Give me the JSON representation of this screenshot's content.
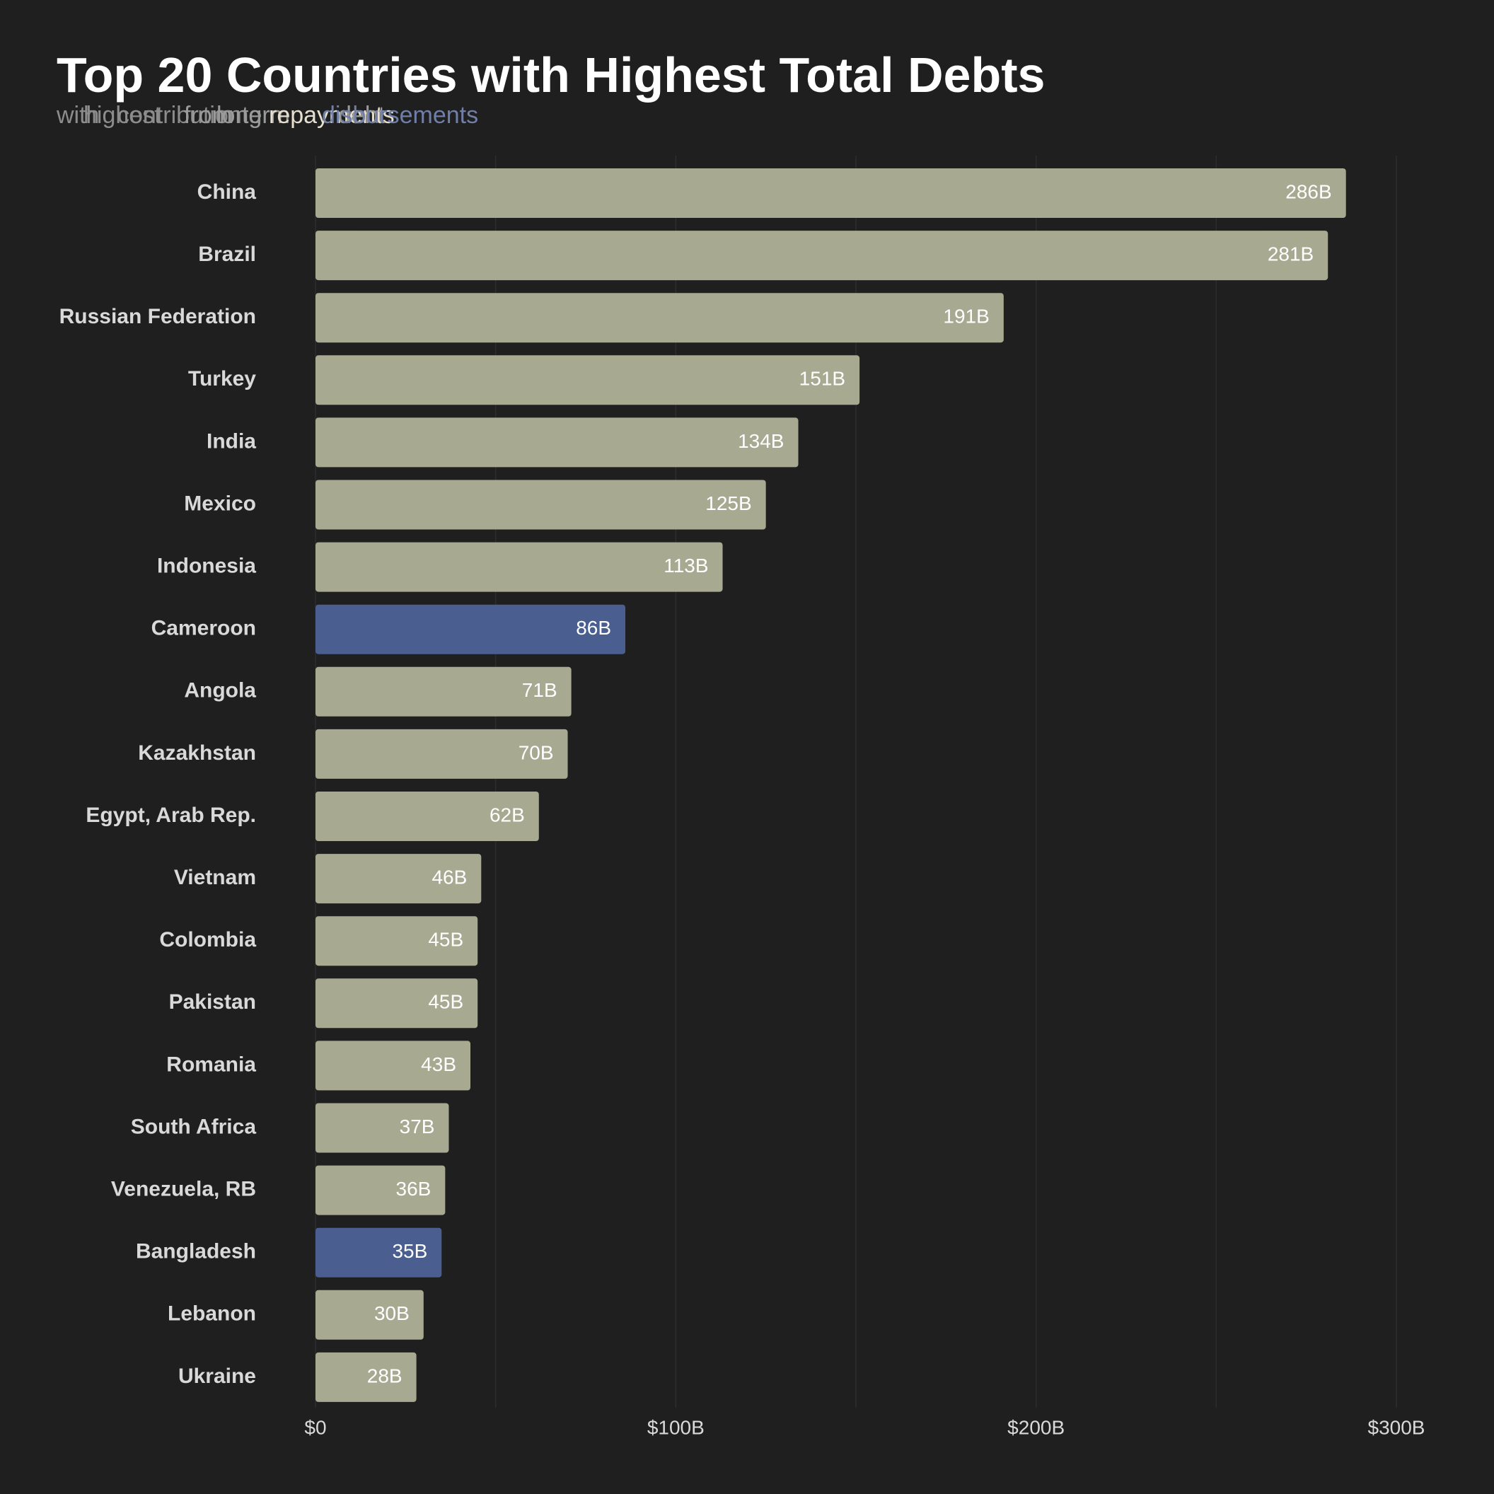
{
  "chart_data": {
    "type": "bar",
    "orientation": "horizontal",
    "title": "Top 20 Countries with Highest Total Debts",
    "subtitle_fragments": [
      {
        "text": "with",
        "color": "#8c8c8c",
        "offset": 0
      },
      {
        "text": "highest",
        "color": "#8c8c8c",
        "offset": 38
      },
      {
        "text": "contribution",
        "color": "#8c8c8c",
        "offset": 86
      },
      {
        "text": "from",
        "color": "#9a9a9a",
        "offset": 180
      },
      {
        "text": "long",
        "color": "#9a9a9a",
        "offset": 226
      },
      {
        "text": "term",
        "color": "#9a9a9a",
        "offset": 262
      },
      {
        "text": "repayments",
        "color": "#e6dfcf",
        "offset": 300
      },
      {
        "text": "debt",
        "color": "#9a9a9a",
        "offset": 398
      },
      {
        "text": "disbursements",
        "color": "#6f7fa8",
        "offset": 375
      }
    ],
    "categories": [
      "China",
      "Brazil",
      "Russian Federation",
      "Turkey",
      "India",
      "Mexico",
      "Indonesia",
      "Cameroon",
      "Angola",
      "Kazakhstan",
      "Egypt, Arab Rep.",
      "Vietnam",
      "Colombia",
      "Pakistan",
      "Romania",
      "South Africa",
      "Venezuela, RB",
      "Bangladesh",
      "Lebanon",
      "Ukraine"
    ],
    "values": [
      286,
      281,
      191,
      151,
      134,
      125,
      113,
      86,
      71,
      70,
      62,
      46,
      45,
      45,
      43,
      37,
      36,
      35,
      30,
      28
    ],
    "value_labels": [
      "286B",
      "281B",
      "191B",
      "151B",
      "134B",
      "125B",
      "113B",
      "86B",
      "71B",
      "70B",
      "62B",
      "46B",
      "45B",
      "45B",
      "43B",
      "37B",
      "36B",
      "35B",
      "30B",
      "28B"
    ],
    "highlighted": [
      "Cameroon",
      "Bangladesh"
    ],
    "colors": {
      "background": "#1f1f1f",
      "bar": "#a8a991",
      "highlight": "#4a5f8f",
      "grid": "#2d2d2d",
      "title": "#ffffff",
      "axis_text": "#d9d9d9",
      "label_text": "#ffffff"
    },
    "x_ticks": [
      0,
      100,
      200,
      300
    ],
    "x_tick_labels": [
      "$0",
      "$100B",
      "$200B",
      "$300B"
    ],
    "xlim": [
      0,
      300
    ],
    "xlabel": "",
    "ylabel": "",
    "grid": true,
    "legend": "none"
  }
}
